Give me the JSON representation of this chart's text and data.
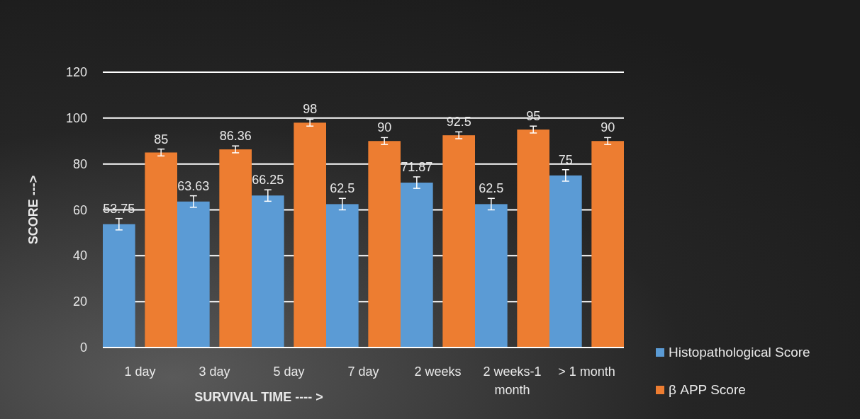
{
  "chart_data": {
    "type": "bar",
    "xlabel": "SURVIVAL TIME ---- >",
    "ylabel": "SCORE --->",
    "categories": [
      "1 day",
      "3 day",
      "5 day",
      "7 day",
      "2 weeks",
      "2 weeks-1 month",
      "> 1 month"
    ],
    "series": [
      {
        "name": "Histopathological Score",
        "color": "#5b9bd5",
        "values": [
          53.75,
          63.63,
          66.25,
          62.5,
          71.87,
          62.5,
          75
        ],
        "errors": [
          2.5,
          2.5,
          2.5,
          2.5,
          2.5,
          2.5,
          2.5
        ]
      },
      {
        "name": "β APP Score",
        "color": "#ed7d31",
        "values": [
          85,
          86.36,
          98,
          90,
          92.5,
          95,
          90
        ],
        "errors": [
          1.5,
          1.5,
          1.5,
          1.5,
          1.5,
          1.5,
          1.5
        ]
      }
    ],
    "ylim": [
      0,
      120
    ],
    "yticks": [
      0,
      20,
      40,
      60,
      80,
      100,
      120
    ],
    "grid": "y",
    "legend": "bottom right",
    "data_labels": true
  }
}
